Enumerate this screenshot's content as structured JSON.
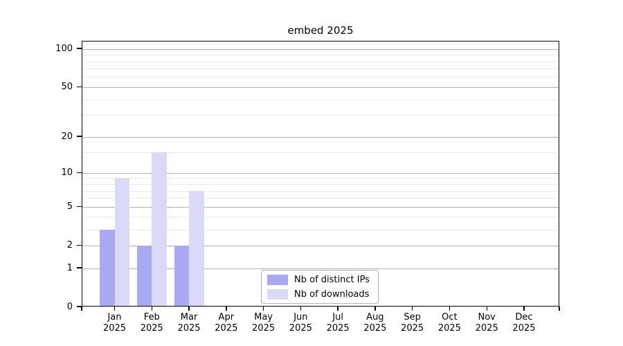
{
  "chart_data": {
    "type": "bar",
    "title": "embed 2025",
    "categories": [
      "Jan",
      "Feb",
      "Mar",
      "Apr",
      "May",
      "Jun",
      "Jul",
      "Aug",
      "Sep",
      "Oct",
      "Nov",
      "Dec"
    ],
    "year_label": "2025",
    "series": [
      {
        "name": "Nb of distinct IPs",
        "color": "#a9a9f3",
        "values": [
          3,
          2,
          2,
          0,
          0,
          0,
          0,
          0,
          0,
          0,
          0,
          0
        ]
      },
      {
        "name": "Nb of downloads",
        "color": "#dadaf8",
        "values": [
          9,
          15,
          7,
          0,
          0,
          0,
          0,
          0,
          0,
          0,
          0,
          0
        ]
      }
    ],
    "y_axis": {
      "scale": "log1p",
      "major_ticks": [
        0,
        1,
        2,
        5,
        10,
        20,
        50,
        100
      ],
      "minor_ticks": [
        3,
        4,
        6,
        7,
        8,
        9,
        15,
        30,
        40,
        60,
        70,
        80,
        90,
        110
      ],
      "ylim": [
        0,
        115
      ]
    },
    "grid": {
      "major_color": "#b0b0b0",
      "minor_color": "#e9e9e9"
    },
    "legend_position": "lower-center"
  }
}
